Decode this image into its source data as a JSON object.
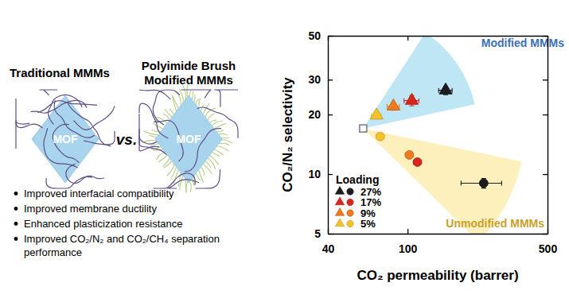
{
  "diagram": {
    "left_title": "Traditional MMMs",
    "right_title": [
      "Polyimide Brush",
      "Modified MMMs"
    ],
    "vs": "vs.",
    "particle_label": "MOF",
    "bullets": [
      "Improved interfacial compatibility",
      "Improved membrane ductility",
      "Enhanced plasticization resistance",
      "Improved CO₂/N₂ and CO₂/CH₄ separation performance"
    ]
  },
  "chart_data": {
    "type": "scatter",
    "log": true,
    "x_label": "CO₂ permeability (barrer)",
    "y_label": "CO₂/N₂ selectivity",
    "xlim": [
      40,
      500
    ],
    "xticks": [
      40,
      100,
      500
    ],
    "ylim": [
      5,
      50
    ],
    "yticks": [
      5,
      10,
      20,
      30,
      50
    ],
    "legend": "lower left",
    "loading_title": "Loading",
    "loading_labels": [
      "27%",
      "17%",
      "9%",
      "5%"
    ],
    "series": [
      {
        "name": "Modified MMMs",
        "marker": "triangle",
        "colors": [
          "#1c1c1c",
          "#d7261e",
          "#ef7a1f",
          "#f6c22c"
        ],
        "x": [
          155,
          105,
          85,
          70
        ],
        "values": [
          26.5,
          23.5,
          22,
          19.8
        ],
        "x_error": [
          12,
          9,
          6,
          4
        ],
        "y_error": [
          1.3,
          1.4,
          1.0,
          0.8
        ]
      },
      {
        "name": "Unmodified MMMs",
        "marker": "circle",
        "colors": [
          "#1c1c1c",
          "#d7261e",
          "#ef7a1f",
          "#f6c22c"
        ],
        "x": [
          240,
          112,
          102,
          73
        ],
        "values": [
          9,
          11.5,
          12.5,
          15.5
        ],
        "x_error": [
          55,
          5,
          4,
          3
        ],
        "y_error": [
          0.5,
          0.3,
          0.4,
          0.6
        ]
      },
      {
        "marker": "square-open",
        "color": "#8a8a8a",
        "x": [
          60
        ],
        "values": [
          17
        ]
      }
    ]
  }
}
